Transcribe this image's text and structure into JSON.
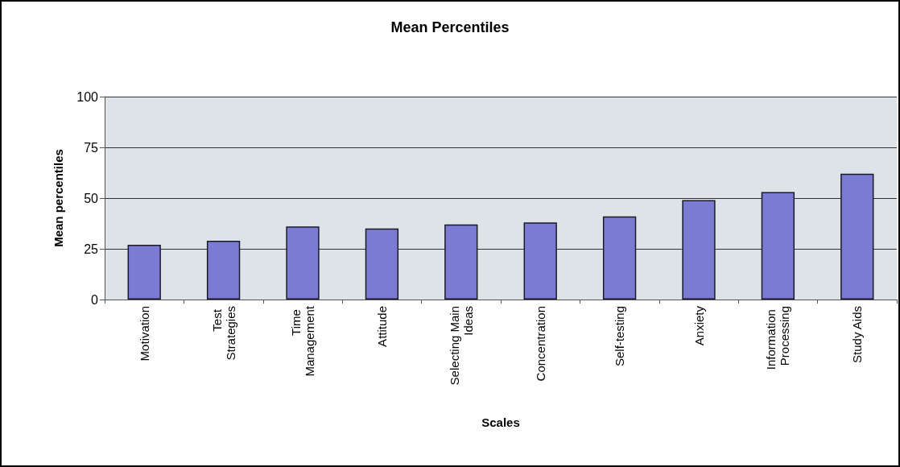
{
  "chart_data": {
    "type": "bar",
    "title": "Mean Percentiles",
    "xlabel": "Scales",
    "ylabel": "Mean percentiles",
    "categories": [
      "Motivation",
      "Test Strategies",
      "Time Management",
      "Attitude",
      "Selecting Main Ideas",
      "Concentration",
      "Self-testing",
      "Anxiety",
      "Information Processing",
      "Study Aids"
    ],
    "values": [
      27,
      29,
      36,
      35,
      37,
      38,
      41,
      49,
      53,
      62
    ],
    "color": "#7b7bd3",
    "ylim": [
      0,
      100
    ],
    "yticks": [
      0,
      25,
      50,
      75,
      100
    ],
    "grid": "y"
  }
}
